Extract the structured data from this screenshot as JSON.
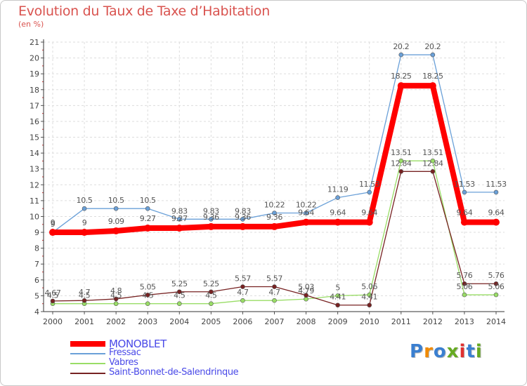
{
  "page": {
    "title": "Evolution du Taux de Taxe d’Habitation",
    "unit_note": "(en %)"
  },
  "chart_data": {
    "type": "line",
    "title": "Evolution du Taux de Taxe d’Habitation",
    "ylabel": "(en %)",
    "xlabel": "",
    "ylim": [
      4,
      21
    ],
    "grid": true,
    "legend_position": "bottom-left",
    "categories": [
      "2000",
      "2001",
      "2002",
      "2003",
      "2004",
      "2005",
      "2006",
      "2007",
      "2008",
      "2009",
      "2010",
      "2011",
      "2012",
      "2013",
      "2014"
    ],
    "y_ticks": [
      "4",
      "5",
      "6",
      "7",
      "8",
      "9",
      "10",
      "11",
      "12",
      "13",
      "14",
      "15",
      "16",
      "17",
      "18",
      "19",
      "20",
      "21"
    ],
    "series": [
      {
        "name": "MONOBLET",
        "color": "#ff0000",
        "values": [
          9,
          9,
          9.09,
          9.27,
          9.27,
          9.36,
          9.36,
          9.36,
          9.64,
          9.64,
          9.64,
          18.25,
          18.25,
          9.64,
          9.64
        ],
        "labels": [
          "9",
          "9",
          "9.09",
          "9.27",
          "9.27",
          "9.36",
          "9.36",
          "9.36",
          "9.64",
          "9.64",
          "9.64",
          "18.25",
          "18.25",
          "9.64",
          "9.64"
        ]
      },
      {
        "name": "Fressac",
        "color": "#6aa0d8",
        "values": [
          9,
          10.5,
          10.5,
          10.5,
          9.83,
          9.83,
          9.83,
          10.22,
          10.22,
          11.19,
          11.53,
          20.2,
          20.2,
          11.53,
          11.53
        ],
        "labels": [
          "9",
          "10.5",
          "10.5",
          "10.5",
          "9.83",
          "9.83",
          "9.83",
          "10.22",
          "10.22",
          "11.19",
          "11.53",
          "20.2",
          "20.2",
          "11.53",
          "11.53"
        ]
      },
      {
        "name": "Vabres",
        "color": "#99dd66",
        "values": [
          4.5,
          4.5,
          4.5,
          4.5,
          4.5,
          4.5,
          4.7,
          4.7,
          4.79,
          5,
          5.06,
          13.51,
          13.51,
          5.06,
          5.06
        ],
        "labels": [
          "4.5",
          "4.5",
          "4.5",
          "4.5",
          "4.5",
          "4.5",
          "4.7",
          "4.7",
          "4.79",
          "5",
          "5.06",
          "13.51",
          "13.51",
          "5.06",
          "5.06"
        ]
      },
      {
        "name": "Saint-Bonnet-de-Salendrinque",
        "color": "#772222",
        "values": [
          4.67,
          4.7,
          4.8,
          5.05,
          5.25,
          5.25,
          5.57,
          5.57,
          5.03,
          4.41,
          4.41,
          12.84,
          12.84,
          5.76,
          5.76
        ],
        "labels": [
          "4.67",
          "4.7",
          "4.8",
          "5.05",
          "5.25",
          "5.25",
          "5.57",
          "5.57",
          "5.03",
          "4.41",
          "4.41",
          "12.84",
          "12.84",
          "5.76",
          "5.76"
        ]
      }
    ]
  },
  "brand": {
    "text": "Proxiti",
    "letters": [
      "P",
      "r",
      "o",
      "x",
      "i",
      "t",
      "i"
    ],
    "letter_colors": [
      "#3a7fd0",
      "#f08a00",
      "#3a7fd0",
      "#66aa22",
      "#e03030",
      "#3a7fd0",
      "#66aa22"
    ]
  }
}
